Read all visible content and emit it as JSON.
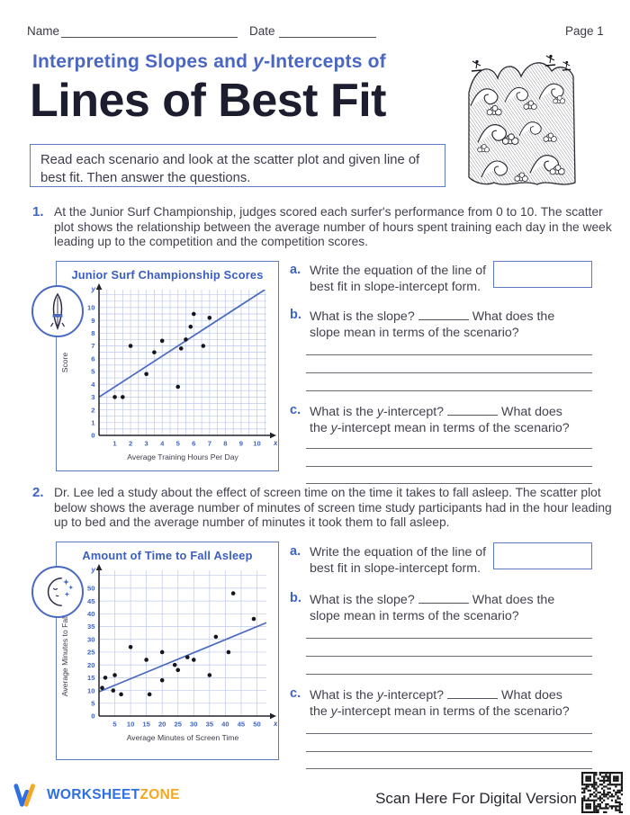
{
  "header": {
    "name_label": "Name",
    "date_label": "Date",
    "page_label": "Page 1"
  },
  "title": {
    "subtitle_part1": "Interpreting Slopes and ",
    "subtitle_italic": "y",
    "subtitle_part2": "-Intercepts of",
    "main": "Lines of Best Fit"
  },
  "instructions": "Read each scenario and look at the scatter plot and given line of best fit. Then answer the questions.",
  "questions": [
    {
      "number": "1.",
      "prompt": "At the Junior Surf Championship, judges scored each surfer's performance from 0 to 10. The scatter plot shows the relationship between the average number of hours spent training each day in the week leading up to the competition and the competition scores.",
      "sub_a": {
        "label": "a.",
        "text": "Write the equation of the line of best fit in slope-intercept form."
      },
      "sub_b": {
        "label": "b.",
        "before": "What is the slope?",
        "after": "What does the slope mean in terms of the scenario?"
      },
      "sub_c": {
        "label": "c.",
        "before1": "What is the ",
        "before_italic": "y",
        "before2": "-intercept?",
        "after1": "What does the ",
        "after_italic": "y",
        "after2": "-intercept mean in terms of the scenario?"
      }
    },
    {
      "number": "2.",
      "prompt": "Dr. Lee led a study about the effect of screen time on the time it takes to fall asleep. The scatter plot below shows the average number of minutes of screen time study participants had in the hour leading up to bed and the average number of minutes it took them to fall asleep.",
      "sub_a": {
        "label": "a.",
        "text": "Write the equation of the line of best fit in slope-intercept form."
      },
      "sub_b": {
        "label": "b.",
        "before": "What is the slope?",
        "after": "What does the slope mean in terms of the scenario?"
      },
      "sub_c": {
        "label": "c.",
        "before1": "What is the ",
        "before_italic": "y",
        "before2": "-intercept?",
        "after1": "What does the ",
        "after_italic": "y",
        "after2": "-intercept mean in terms of the scenario?"
      }
    }
  ],
  "chart_data": [
    {
      "type": "scatter",
      "title": "Junior Surf Championship Scores",
      "xlabel": "Average Training Hours Per Day",
      "ylabel": "Score",
      "x_axis_letter": "x",
      "y_axis_letter": "y",
      "xlim": [
        0,
        10.6
      ],
      "ylim": [
        0,
        11.4
      ],
      "x_ticks": [
        1,
        2,
        3,
        4,
        5,
        6,
        7,
        8,
        9,
        10
      ],
      "y_ticks": [
        0,
        1,
        2,
        3,
        4,
        5,
        6,
        7,
        8,
        9,
        10
      ],
      "grid_step": 0.5,
      "points": [
        [
          1,
          3
        ],
        [
          1.5,
          3
        ],
        [
          2,
          7
        ],
        [
          3,
          4.8
        ],
        [
          3.5,
          6.5
        ],
        [
          4,
          7.4
        ],
        [
          5,
          3.8
        ],
        [
          5.2,
          6.8
        ],
        [
          5.5,
          7.5
        ],
        [
          5.8,
          8.5
        ],
        [
          6,
          9.5
        ],
        [
          6.6,
          7
        ],
        [
          7,
          9.2
        ]
      ],
      "best_fit_line": {
        "x1": 0,
        "y1": 3,
        "x2": 10.5,
        "y2": 11.4
      }
    },
    {
      "type": "scatter",
      "title": "Amount of Time to Fall Asleep",
      "xlabel": "Average Minutes of Screen Time",
      "ylabel": "Average Minutes to Fall Asleep",
      "x_axis_letter": "x",
      "y_axis_letter": "y",
      "xlim": [
        0,
        53
      ],
      "ylim": [
        0,
        57
      ],
      "x_ticks": [
        5,
        10,
        15,
        20,
        25,
        30,
        35,
        40,
        45,
        50
      ],
      "y_ticks": [
        0,
        5,
        10,
        15,
        20,
        25,
        30,
        35,
        40,
        45,
        50
      ],
      "grid_step": 5,
      "points": [
        [
          1,
          11
        ],
        [
          2,
          15
        ],
        [
          4.5,
          10
        ],
        [
          5,
          16
        ],
        [
          7,
          8.5
        ],
        [
          10,
          27
        ],
        [
          15,
          22
        ],
        [
          16,
          8.5
        ],
        [
          20,
          14
        ],
        [
          20,
          25
        ],
        [
          24,
          20
        ],
        [
          25,
          18
        ],
        [
          28,
          23
        ],
        [
          30,
          22
        ],
        [
          35,
          16
        ],
        [
          37,
          31
        ],
        [
          41,
          25
        ],
        [
          42.5,
          48
        ],
        [
          49,
          38
        ]
      ],
      "best_fit_line": {
        "x1": 0,
        "y1": 9.5,
        "x2": 53,
        "y2": 36.5
      }
    }
  ],
  "footer": {
    "brand_part1": "WORKSHEET",
    "brand_part2": "ZONE",
    "scan_text": "Scan Here For Digital Version"
  },
  "colors": {
    "accent_blue": "#4a67c4",
    "dark_title": "#1d1d30",
    "grid_blue": "#bdc9ea",
    "line_blue": "#4a69c1",
    "point_black": "#15151f",
    "brand_blue": "#2f6fe4",
    "brand_orange": "#f5a722"
  }
}
